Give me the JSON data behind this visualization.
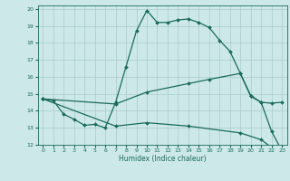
{
  "xlabel": "Humidex (Indice chaleur)",
  "bg_color": "#cce8e8",
  "grid_color": "#aacccc",
  "line_color": "#1a6b5a",
  "xlim": [
    -0.5,
    23.5
  ],
  "ylim": [
    12,
    20.2
  ],
  "xticks": [
    0,
    1,
    2,
    3,
    4,
    5,
    6,
    7,
    8,
    9,
    10,
    11,
    12,
    13,
    14,
    15,
    16,
    17,
    18,
    19,
    20,
    21,
    22,
    23
  ],
  "yticks": [
    12,
    13,
    14,
    15,
    16,
    17,
    18,
    19,
    20
  ],
  "lines": [
    {
      "x": [
        0,
        1,
        2,
        3,
        4,
        5,
        6,
        7,
        8,
        9,
        10,
        11,
        12,
        13,
        14,
        15,
        16,
        17,
        18,
        19,
        20,
        21,
        22,
        23
      ],
      "y": [
        14.7,
        14.6,
        13.8,
        13.5,
        13.15,
        13.2,
        13.0,
        14.5,
        16.6,
        18.7,
        19.9,
        19.2,
        19.2,
        19.35,
        19.4,
        19.2,
        18.9,
        18.15,
        17.5,
        16.2,
        14.9,
        14.5,
        12.8,
        11.65
      ]
    },
    {
      "x": [
        0,
        7,
        10,
        14,
        16,
        19,
        20,
        21,
        22,
        23
      ],
      "y": [
        14.7,
        14.4,
        15.1,
        15.6,
        15.85,
        16.2,
        14.85,
        14.5,
        14.45,
        14.5
      ]
    },
    {
      "x": [
        0,
        7,
        10,
        14,
        19,
        21,
        22,
        23
      ],
      "y": [
        14.7,
        13.1,
        13.3,
        13.1,
        12.7,
        12.3,
        11.85,
        11.65
      ]
    }
  ]
}
